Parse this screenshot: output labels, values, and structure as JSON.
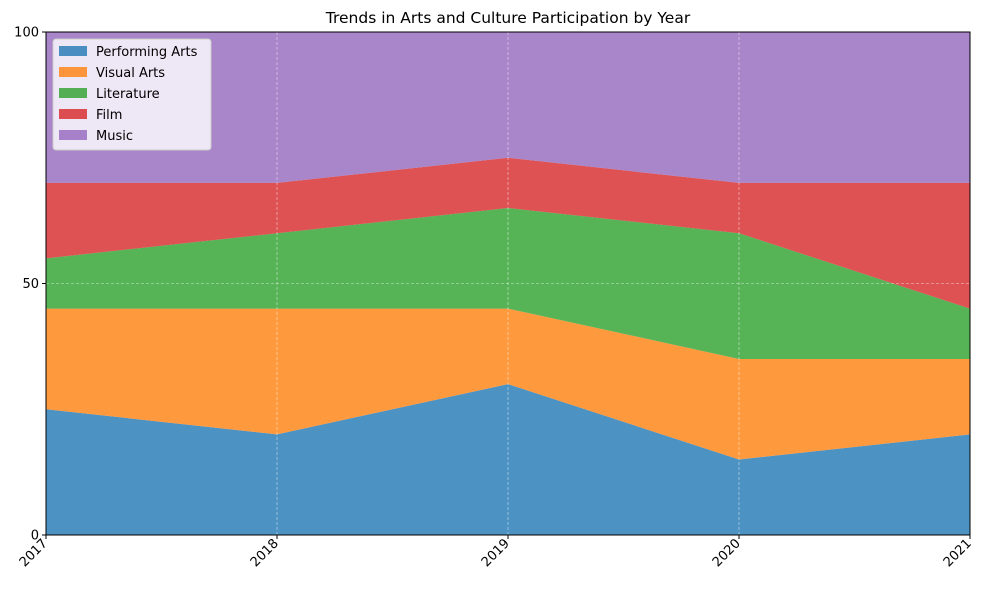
{
  "chart_data": {
    "type": "area",
    "stacked": true,
    "title": "Trends in Arts and Culture Participation by Year",
    "xlabel": "",
    "ylabel": "",
    "x": [
      2017,
      2018,
      2019,
      2020,
      2021
    ],
    "x_tick_labels": [
      "2017",
      "2018",
      "2019",
      "2020",
      "2021"
    ],
    "ylim": [
      0,
      100
    ],
    "y_ticks": [
      0,
      50,
      100
    ],
    "grid": true,
    "legend_position": "upper-left",
    "series": [
      {
        "name": "Performing Arts",
        "color": "#1f77b4",
        "values": [
          25,
          20,
          30,
          15,
          20
        ]
      },
      {
        "name": "Visual Arts",
        "color": "#ff7f0e",
        "values": [
          20,
          25,
          15,
          20,
          15
        ]
      },
      {
        "name": "Literature",
        "color": "#2ca02c",
        "values": [
          10,
          15,
          20,
          25,
          10
        ]
      },
      {
        "name": "Film",
        "color": "#d62728",
        "values": [
          15,
          10,
          10,
          10,
          25
        ]
      },
      {
        "name": "Music",
        "color": "#9467bd",
        "values": [
          30,
          30,
          25,
          30,
          30
        ]
      }
    ]
  }
}
